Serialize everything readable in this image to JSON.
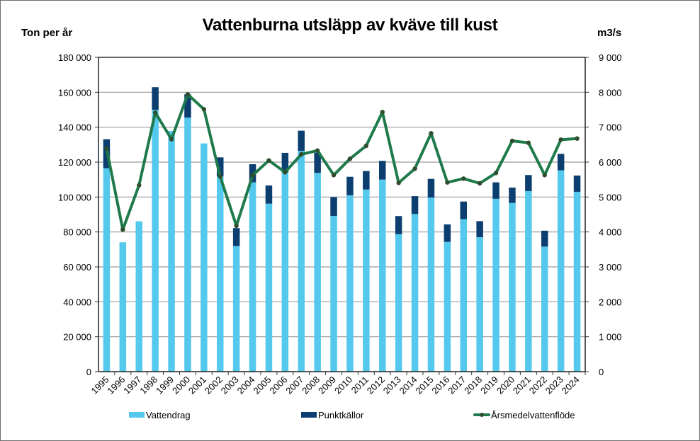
{
  "title": "Vattenburna utsläpp av kväve till kust",
  "axis_left_label": "Ton per år",
  "axis_right_label": "m3/s",
  "left_ticks": [
    "0",
    "20 000",
    "40 000",
    "60 000",
    "80 000",
    "100 000",
    "120 000",
    "140 000",
    "160 000",
    "180 000"
  ],
  "right_ticks": [
    "0",
    "1 000",
    "2 000",
    "3 000",
    "4 000",
    "5 000",
    "6 000",
    "7 000",
    "8 000",
    "9 000"
  ],
  "legend": {
    "vattendrag": "Vattendrag",
    "punktkallor": "Punktkällor",
    "flow": "Årsmedelvattenflöde"
  },
  "colors": {
    "vattendrag": "#55c8ee",
    "punktkallor": "#0c3f70",
    "flow_line": "#1e7a4a",
    "flow_marker": "#2e4e2e",
    "grid": "#9a9a9a"
  },
  "chart_data": {
    "type": "bar",
    "subtype": "stacked bar + line (secondary axis)",
    "title": "Vattenburna utsläpp av kväve till kust",
    "xlabel": "",
    "ylabel": "Ton per år",
    "y2label": "m3/s",
    "ylim": [
      0,
      180000
    ],
    "y2lim": [
      0,
      9000
    ],
    "grid": true,
    "legend_position": "bottom",
    "categories": [
      "1995",
      "1996",
      "1997",
      "1998",
      "1999",
      "2000",
      "2001",
      "2002",
      "2003",
      "2004",
      "2005",
      "2006",
      "2007",
      "2008",
      "2009",
      "2010",
      "2011",
      "2012",
      "2013",
      "2014",
      "2015",
      "2016",
      "2017",
      "2018",
      "2019",
      "2020",
      "2021",
      "2022",
      "2023",
      "2024"
    ],
    "series": [
      {
        "name": "Vattendrag",
        "type": "bar",
        "axis": "left",
        "values": [
          116500,
          74100,
          86100,
          150000,
          137800,
          145500,
          130700,
          111800,
          71900,
          108400,
          96200,
          114200,
          126400,
          113800,
          89200,
          101000,
          104300,
          110000,
          78700,
          90300,
          99700,
          74300,
          87300,
          77000,
          99000,
          96600,
          103400,
          71600,
          115300,
          103000
        ]
      },
      {
        "name": "Punktkällor",
        "type": "bar",
        "axis": "left",
        "stacked": true,
        "values": [
          16600,
          0,
          0,
          12900,
          0,
          13300,
          0,
          10900,
          10300,
          10400,
          10400,
          11100,
          11600,
          11600,
          10800,
          10600,
          10600,
          10700,
          10400,
          10200,
          10700,
          10000,
          10100,
          9200,
          9400,
          8800,
          9200,
          9100,
          9400,
          9300
        ]
      },
      {
        "name": "Årsmedelvattenflöde",
        "type": "line",
        "axis": "right",
        "values": [
          6385,
          4068,
          5337,
          7418,
          6655,
          7940,
          7514,
          5588,
          4176,
          5620,
          6047,
          5710,
          6223,
          6330,
          5629,
          6095,
          6466,
          7433,
          5406,
          5811,
          6825,
          5418,
          5527,
          5392,
          5690,
          6608,
          6553,
          5629,
          6642,
          6675
        ]
      }
    ]
  }
}
